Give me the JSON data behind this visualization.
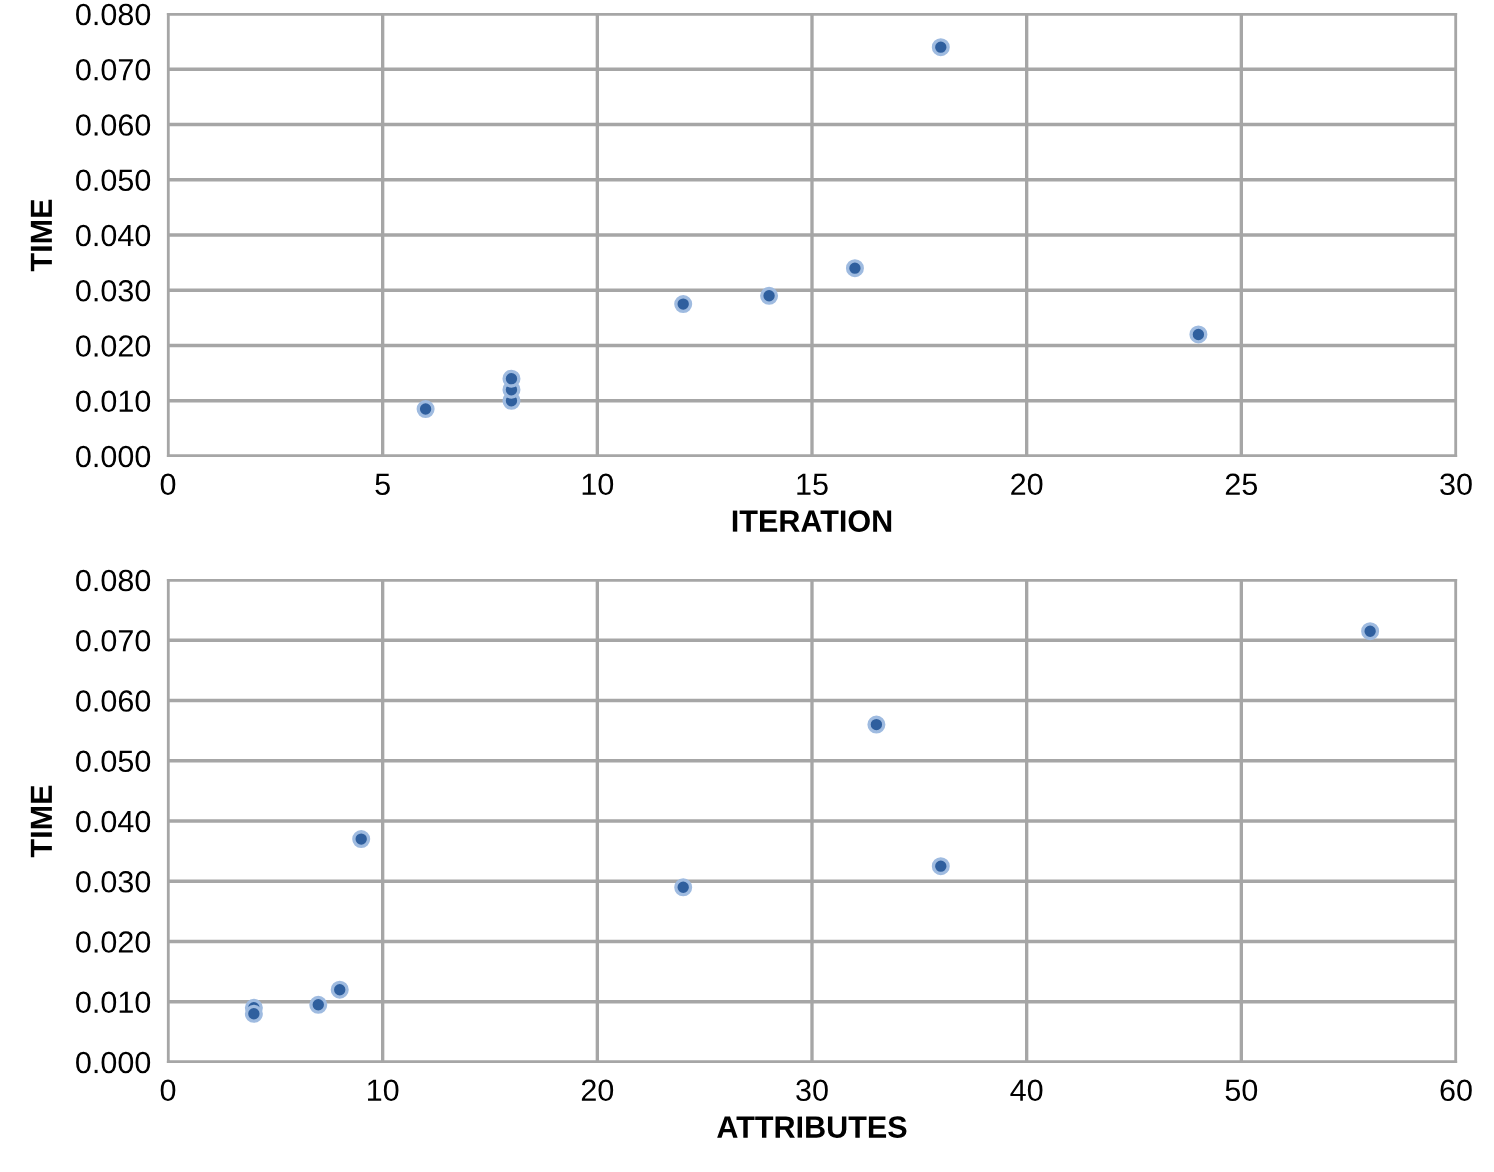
{
  "chart_data": [
    {
      "type": "scatter",
      "xlabel": "ITERATION",
      "ylabel": "TIME",
      "xlim": [
        0,
        30
      ],
      "xticks": [
        0,
        5,
        10,
        15,
        20,
        25,
        30
      ],
      "ylim": [
        0,
        0.08
      ],
      "yticks": [
        {
          "value": 0,
          "label": "0.000"
        },
        {
          "value": 0.01,
          "label": "0.010"
        },
        {
          "value": 0.02,
          "label": "0.020"
        },
        {
          "value": 0.03,
          "label": "0.030"
        },
        {
          "value": 0.04,
          "label": "0.040"
        },
        {
          "value": 0.05,
          "label": "0.050"
        },
        {
          "value": 0.06,
          "label": "0.060"
        },
        {
          "value": 0.07,
          "label": "0.070"
        },
        {
          "value": 0.08,
          "label": "0.080"
        }
      ],
      "grid": true,
      "marker": "circle",
      "series": [
        {
          "color": "#2f5f9e",
          "x": [
            6,
            8,
            8,
            8,
            12,
            14,
            16,
            18,
            24
          ],
          "values": [
            0.0085,
            0.01,
            0.012,
            0.014,
            0.0275,
            0.029,
            0.034,
            0.074,
            0.022
          ]
        }
      ]
    },
    {
      "type": "scatter",
      "xlabel": "ATTRIBUTES",
      "ylabel": "TIME",
      "xlim": [
        0,
        60
      ],
      "xticks": [
        0,
        10,
        20,
        30,
        40,
        50,
        60
      ],
      "ylim": [
        0,
        0.08
      ],
      "yticks": [
        {
          "value": 0,
          "label": "0.000"
        },
        {
          "value": 0.01,
          "label": "0.010"
        },
        {
          "value": 0.02,
          "label": "0.020"
        },
        {
          "value": 0.03,
          "label": "0.030"
        },
        {
          "value": 0.04,
          "label": "0.040"
        },
        {
          "value": 0.05,
          "label": "0.050"
        },
        {
          "value": 0.06,
          "label": "0.060"
        },
        {
          "value": 0.07,
          "label": "0.070"
        },
        {
          "value": 0.08,
          "label": "0.080"
        }
      ],
      "grid": true,
      "marker": "circle",
      "series": [
        {
          "color": "#2f5f9e",
          "x": [
            4,
            4,
            7,
            8,
            9,
            24,
            33,
            36,
            56
          ],
          "values": [
            0.009,
            0.008,
            0.0095,
            0.012,
            0.037,
            0.029,
            0.056,
            0.0325,
            0.0715
          ]
        }
      ]
    }
  ]
}
